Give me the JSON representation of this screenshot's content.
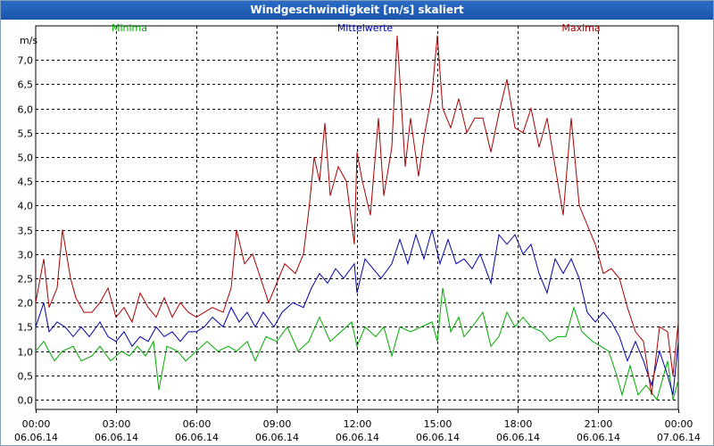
{
  "window": {
    "title": "Windgeschwindigkeit [m/s] skaliert"
  },
  "chart_data": {
    "type": "line",
    "title": "Windgeschwindigkeit [m/s] skaliert",
    "ylabel": "m/s",
    "ylim": [
      -0.2,
      7.7
    ],
    "yticks": [
      0.0,
      0.5,
      1.0,
      1.5,
      2.0,
      2.5,
      3.0,
      3.5,
      4.0,
      4.5,
      5.0,
      5.5,
      6.0,
      6.5,
      7.0
    ],
    "ytick_labels": [
      "0,0",
      "0,5",
      "1,0",
      "1,5",
      "2,0",
      "2,5",
      "3,0",
      "3,5",
      "4,0",
      "4,5",
      "5,0",
      "5,5",
      "6,0",
      "6,5",
      "7,0"
    ],
    "xlim": [
      0,
      24
    ],
    "xticks": [
      0,
      3,
      6,
      9,
      12,
      15,
      18,
      21,
      24
    ],
    "xtick_labels": [
      {
        "time": "00:00",
        "date": "06.06.14"
      },
      {
        "time": "03:00",
        "date": "06.06.14"
      },
      {
        "time": "06:00",
        "date": "06.06.14"
      },
      {
        "time": "09:00",
        "date": "06.06.14"
      },
      {
        "time": "12:00",
        "date": "06.06.14"
      },
      {
        "time": "15:00",
        "date": "06.06.14"
      },
      {
        "time": "18:00",
        "date": "06.06.14"
      },
      {
        "time": "21:00",
        "date": "06.06.14"
      },
      {
        "time": "00:00",
        "date": "07.06.14"
      }
    ],
    "grid": true,
    "series": [
      {
        "name": "Minima",
        "color": "#00aa00",
        "points": [
          [
            0,
            1.0
          ],
          [
            0.3,
            1.2
          ],
          [
            0.7,
            0.8
          ],
          [
            1.0,
            1.0
          ],
          [
            1.4,
            1.1
          ],
          [
            1.7,
            0.8
          ],
          [
            2.1,
            0.9
          ],
          [
            2.4,
            1.1
          ],
          [
            2.8,
            0.8
          ],
          [
            3.2,
            1.0
          ],
          [
            3.5,
            0.9
          ],
          [
            3.8,
            1.1
          ],
          [
            4.1,
            0.9
          ],
          [
            4.4,
            1.2
          ],
          [
            4.6,
            0.2
          ],
          [
            4.9,
            1.1
          ],
          [
            5.3,
            1.0
          ],
          [
            5.6,
            0.8
          ],
          [
            6.0,
            1.0
          ],
          [
            6.4,
            1.2
          ],
          [
            6.8,
            1.0
          ],
          [
            7.2,
            1.1
          ],
          [
            7.5,
            1.0
          ],
          [
            7.9,
            1.2
          ],
          [
            8.2,
            0.8
          ],
          [
            8.6,
            1.3
          ],
          [
            9.0,
            1.2
          ],
          [
            9.4,
            1.5
          ],
          [
            9.8,
            1.0
          ],
          [
            10.2,
            1.2
          ],
          [
            10.6,
            1.7
          ],
          [
            11.0,
            1.2
          ],
          [
            11.4,
            1.4
          ],
          [
            11.8,
            1.6
          ],
          [
            12.0,
            1.1
          ],
          [
            12.3,
            1.5
          ],
          [
            12.7,
            1.3
          ],
          [
            13.0,
            1.5
          ],
          [
            13.3,
            0.9
          ],
          [
            13.6,
            1.5
          ],
          [
            14.0,
            1.4
          ],
          [
            14.4,
            1.5
          ],
          [
            14.8,
            1.6
          ],
          [
            15.0,
            1.2
          ],
          [
            15.2,
            2.3
          ],
          [
            15.5,
            1.4
          ],
          [
            15.8,
            1.7
          ],
          [
            16.0,
            1.3
          ],
          [
            16.3,
            1.5
          ],
          [
            16.7,
            1.8
          ],
          [
            17.0,
            1.1
          ],
          [
            17.3,
            1.3
          ],
          [
            17.6,
            1.8
          ],
          [
            17.9,
            1.5
          ],
          [
            18.2,
            1.7
          ],
          [
            18.5,
            1.5
          ],
          [
            18.9,
            1.4
          ],
          [
            19.2,
            1.2
          ],
          [
            19.5,
            1.3
          ],
          [
            19.8,
            1.3
          ],
          [
            20.1,
            1.9
          ],
          [
            20.4,
            1.4
          ],
          [
            20.8,
            1.2
          ],
          [
            21.1,
            1.1
          ],
          [
            21.4,
            1.0
          ],
          [
            21.7,
            0.5
          ],
          [
            21.9,
            0.1
          ],
          [
            22.2,
            0.7
          ],
          [
            22.5,
            0.1
          ],
          [
            22.8,
            0.3
          ],
          [
            23.2,
            0.0
          ],
          [
            23.6,
            0.8
          ],
          [
            23.8,
            0.0
          ],
          [
            24.0,
            0.4
          ]
        ]
      },
      {
        "name": "Mittelwerte",
        "color": "#0000aa",
        "points": [
          [
            0,
            1.5
          ],
          [
            0.3,
            2.0
          ],
          [
            0.5,
            1.4
          ],
          [
            0.8,
            1.6
          ],
          [
            1.1,
            1.5
          ],
          [
            1.4,
            1.3
          ],
          [
            1.7,
            1.5
          ],
          [
            2.0,
            1.3
          ],
          [
            2.4,
            1.6
          ],
          [
            2.7,
            1.3
          ],
          [
            3.0,
            1.2
          ],
          [
            3.3,
            1.4
          ],
          [
            3.6,
            1.1
          ],
          [
            3.9,
            1.3
          ],
          [
            4.2,
            1.2
          ],
          [
            4.5,
            1.5
          ],
          [
            4.8,
            1.3
          ],
          [
            5.1,
            1.4
          ],
          [
            5.4,
            1.2
          ],
          [
            5.7,
            1.4
          ],
          [
            6.0,
            1.4
          ],
          [
            6.3,
            1.5
          ],
          [
            6.6,
            1.7
          ],
          [
            7.0,
            1.5
          ],
          [
            7.3,
            1.9
          ],
          [
            7.6,
            1.6
          ],
          [
            7.9,
            1.8
          ],
          [
            8.2,
            1.5
          ],
          [
            8.5,
            1.8
          ],
          [
            8.9,
            1.5
          ],
          [
            9.2,
            1.8
          ],
          [
            9.6,
            2.0
          ],
          [
            10.0,
            1.9
          ],
          [
            10.3,
            2.3
          ],
          [
            10.6,
            2.6
          ],
          [
            10.9,
            2.4
          ],
          [
            11.2,
            2.7
          ],
          [
            11.5,
            2.5
          ],
          [
            11.9,
            2.8
          ],
          [
            12.0,
            2.2
          ],
          [
            12.3,
            2.9
          ],
          [
            12.6,
            2.7
          ],
          [
            12.9,
            2.5
          ],
          [
            13.3,
            2.8
          ],
          [
            13.6,
            3.3
          ],
          [
            13.9,
            2.8
          ],
          [
            14.2,
            3.4
          ],
          [
            14.5,
            2.9
          ],
          [
            14.8,
            3.5
          ],
          [
            15.1,
            2.8
          ],
          [
            15.4,
            3.3
          ],
          [
            15.7,
            2.8
          ],
          [
            16.0,
            2.9
          ],
          [
            16.3,
            2.7
          ],
          [
            16.6,
            3.0
          ],
          [
            17.0,
            2.4
          ],
          [
            17.3,
            3.4
          ],
          [
            17.6,
            3.2
          ],
          [
            17.9,
            3.4
          ],
          [
            18.2,
            3.0
          ],
          [
            18.5,
            3.2
          ],
          [
            18.8,
            2.6
          ],
          [
            19.1,
            2.2
          ],
          [
            19.4,
            2.9
          ],
          [
            19.7,
            2.6
          ],
          [
            20.0,
            2.9
          ],
          [
            20.3,
            2.5
          ],
          [
            20.6,
            1.8
          ],
          [
            20.9,
            1.6
          ],
          [
            21.2,
            1.8
          ],
          [
            21.5,
            1.6
          ],
          [
            21.8,
            1.3
          ],
          [
            22.1,
            0.8
          ],
          [
            22.4,
            1.2
          ],
          [
            22.7,
            0.8
          ],
          [
            23.0,
            0.3
          ],
          [
            23.3,
            1.0
          ],
          [
            23.6,
            0.5
          ],
          [
            23.8,
            0.1
          ],
          [
            24.0,
            1.2
          ]
        ]
      },
      {
        "name": "Maxima",
        "color": "#aa0000",
        "points": [
          [
            0,
            2.0
          ],
          [
            0.3,
            2.9
          ],
          [
            0.5,
            1.9
          ],
          [
            0.8,
            2.3
          ],
          [
            1.0,
            3.5
          ],
          [
            1.3,
            2.5
          ],
          [
            1.5,
            2.1
          ],
          [
            1.8,
            1.8
          ],
          [
            2.1,
            1.8
          ],
          [
            2.4,
            2.0
          ],
          [
            2.7,
            2.3
          ],
          [
            3.0,
            1.7
          ],
          [
            3.3,
            1.9
          ],
          [
            3.6,
            1.6
          ],
          [
            3.9,
            2.2
          ],
          [
            4.2,
            1.9
          ],
          [
            4.5,
            1.7
          ],
          [
            4.8,
            2.1
          ],
          [
            5.1,
            1.7
          ],
          [
            5.4,
            2.0
          ],
          [
            5.7,
            1.8
          ],
          [
            6.0,
            1.7
          ],
          [
            6.3,
            1.8
          ],
          [
            6.6,
            1.9
          ],
          [
            7.0,
            1.8
          ],
          [
            7.3,
            2.3
          ],
          [
            7.5,
            3.5
          ],
          [
            7.8,
            2.8
          ],
          [
            8.1,
            3.0
          ],
          [
            8.4,
            2.5
          ],
          [
            8.7,
            2.0
          ],
          [
            9.0,
            2.4
          ],
          [
            9.3,
            2.8
          ],
          [
            9.7,
            2.6
          ],
          [
            10.0,
            3.0
          ],
          [
            10.2,
            3.9
          ],
          [
            10.4,
            5.0
          ],
          [
            10.6,
            4.5
          ],
          [
            10.8,
            5.7
          ],
          [
            11.0,
            4.2
          ],
          [
            11.3,
            4.8
          ],
          [
            11.6,
            4.5
          ],
          [
            11.9,
            3.2
          ],
          [
            12.0,
            5.1
          ],
          [
            12.2,
            4.5
          ],
          [
            12.5,
            3.8
          ],
          [
            12.8,
            5.8
          ],
          [
            13.0,
            4.2
          ],
          [
            13.3,
            5.2
          ],
          [
            13.5,
            7.5
          ],
          [
            13.8,
            4.8
          ],
          [
            14.0,
            5.8
          ],
          [
            14.3,
            4.6
          ],
          [
            14.5,
            5.4
          ],
          [
            14.8,
            6.3
          ],
          [
            15.0,
            7.5
          ],
          [
            15.2,
            6.0
          ],
          [
            15.5,
            5.6
          ],
          [
            15.8,
            6.2
          ],
          [
            16.1,
            5.5
          ],
          [
            16.4,
            5.8
          ],
          [
            16.7,
            5.8
          ],
          [
            17.0,
            5.1
          ],
          [
            17.3,
            5.9
          ],
          [
            17.6,
            6.6
          ],
          [
            17.9,
            5.6
          ],
          [
            18.2,
            5.5
          ],
          [
            18.5,
            6.0
          ],
          [
            18.8,
            5.2
          ],
          [
            19.1,
            5.8
          ],
          [
            19.4,
            4.8
          ],
          [
            19.7,
            3.8
          ],
          [
            20.0,
            5.8
          ],
          [
            20.3,
            4.0
          ],
          [
            20.6,
            3.6
          ],
          [
            20.9,
            3.2
          ],
          [
            21.2,
            2.6
          ],
          [
            21.5,
            2.7
          ],
          [
            21.8,
            2.5
          ],
          [
            22.1,
            1.9
          ],
          [
            22.4,
            1.4
          ],
          [
            22.7,
            1.2
          ],
          [
            23.0,
            0.1
          ],
          [
            23.3,
            1.5
          ],
          [
            23.6,
            1.4
          ],
          [
            23.8,
            0.5
          ],
          [
            24.0,
            1.6
          ]
        ]
      }
    ]
  }
}
